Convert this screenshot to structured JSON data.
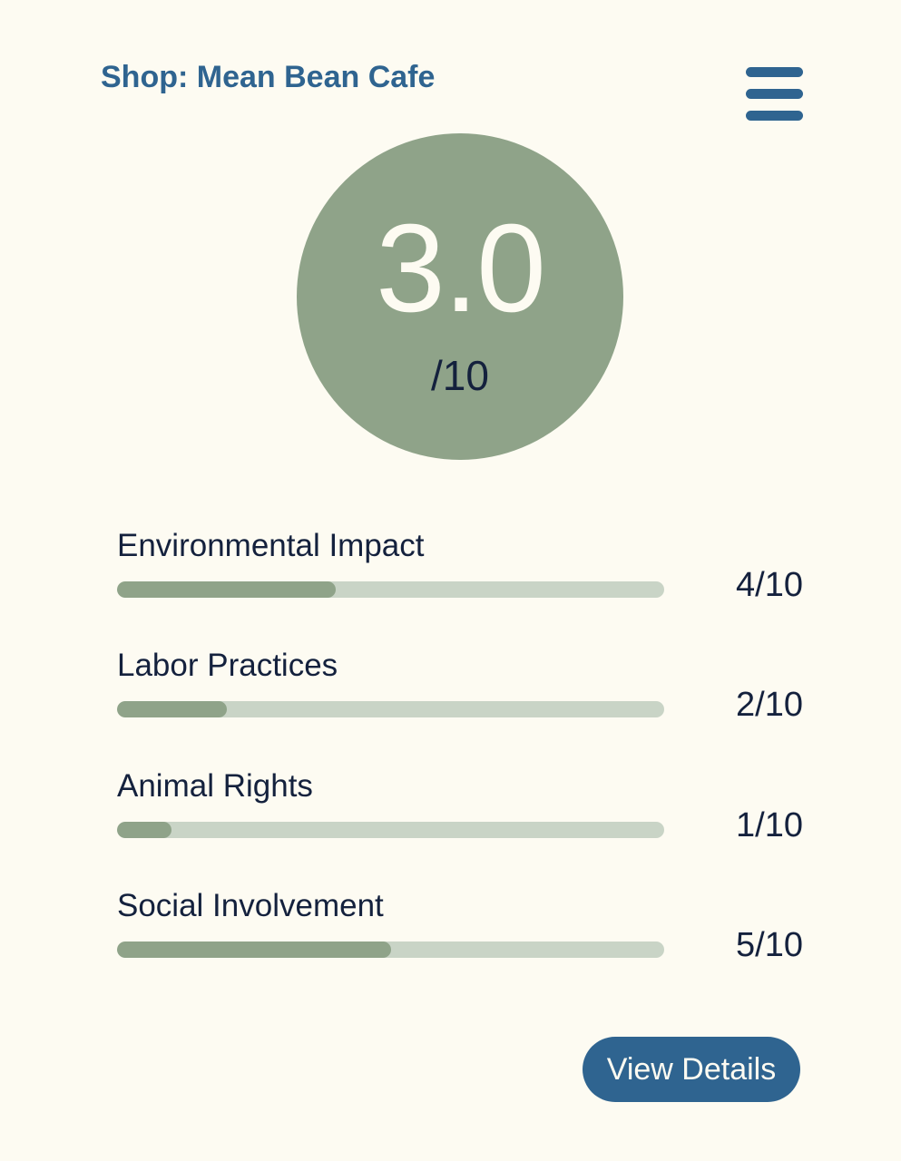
{
  "header": {
    "title": "Shop: Mean Bean Cafe",
    "menu_icon": "hamburger-menu-icon"
  },
  "overall_score": {
    "value": "3.0",
    "max_label": "/10"
  },
  "categories": [
    {
      "label": "Environmental Impact",
      "score_text": "4/10",
      "score": 4,
      "max": 10
    },
    {
      "label": "Labor Practices",
      "score_text": "2/10",
      "score": 2,
      "max": 10
    },
    {
      "label": "Animal Rights",
      "score_text": "1/10",
      "score": 1,
      "max": 10
    },
    {
      "label": "Social Involvement",
      "score_text": "5/10",
      "score": 5,
      "max": 10
    }
  ],
  "actions": {
    "view_details_label": "View Details"
  },
  "colors": {
    "background": "#fdfbf2",
    "accent_blue": "#2f6490",
    "sage_green": "#8fa389",
    "track_light": "#c9d4c6",
    "text_dark": "#14213d"
  }
}
